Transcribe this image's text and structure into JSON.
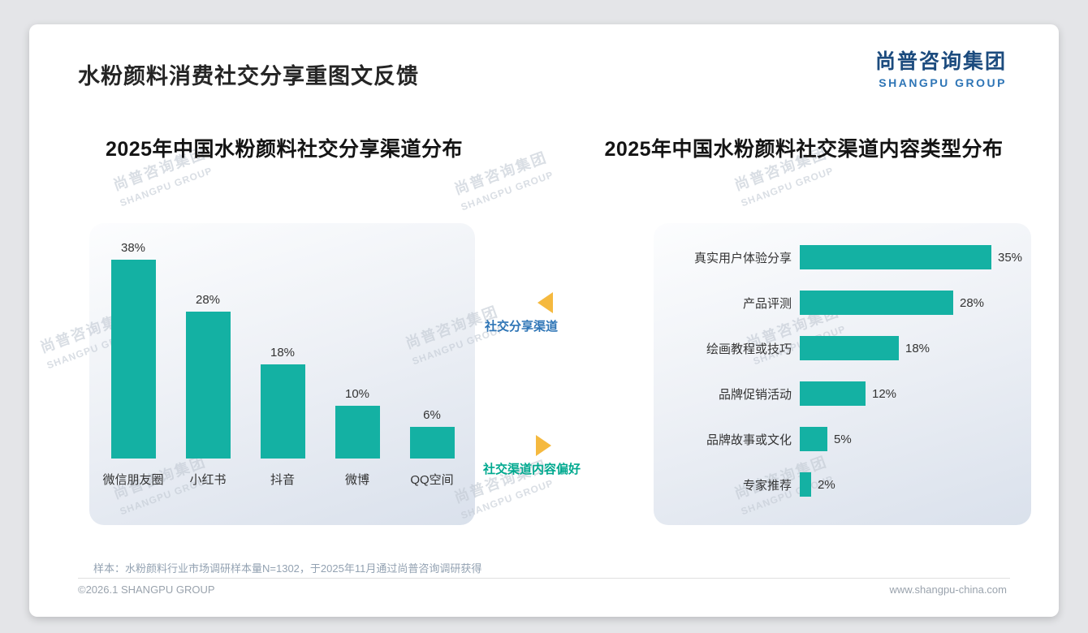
{
  "page": {
    "title": "水粉颜料消费社交分享重图文反馈",
    "logo": {
      "cn": "尚普咨询集团",
      "en": "SHANGPU GROUP"
    },
    "watermark": {
      "cn": "尚普咨询集团",
      "en": "SHANGPU GROUP"
    },
    "sample_note": "样本：水粉颜料行业市场调研样本量N=1302，于2025年11月通过尚普咨询调研获得",
    "footer": {
      "copyright": "©2026.1 SHANGPU GROUP",
      "website": "www.shangpu-china.com"
    }
  },
  "annotations": {
    "left_chart_label": "社交分享渠道",
    "right_chart_label": "社交渠道内容偏好"
  },
  "colors": {
    "bar_teal": "#14B1A3",
    "annotation_blue": "#2E75B6",
    "annotation_teal": "#00A98F",
    "arrow_gold": "#F5B93F",
    "logo_navy": "#1C4B7E",
    "logo_blue": "#2E75B6"
  },
  "chart_data": [
    {
      "type": "bar",
      "orientation": "vertical",
      "title": "2025年中国水粉颜料社交分享渠道分布",
      "categories": [
        "微信朋友圈",
        "小红书",
        "抖音",
        "微博",
        "QQ空间"
      ],
      "values": [
        38,
        28,
        18,
        10,
        6
      ],
      "value_labels": [
        "38%",
        "28%",
        "18%",
        "10%",
        "6%"
      ],
      "unit": "%",
      "ylim": [
        0,
        40
      ],
      "grid": false,
      "legend": false
    },
    {
      "type": "bar",
      "orientation": "horizontal",
      "title": "2025年中国水粉颜料社交渠道内容类型分布",
      "categories": [
        "真实用户体验分享",
        "产品评测",
        "绘画教程或技巧",
        "品牌促销活动",
        "品牌故事或文化",
        "专家推荐"
      ],
      "values": [
        35,
        28,
        18,
        12,
        5,
        2
      ],
      "value_labels": [
        "35%",
        "28%",
        "18%",
        "12%",
        "5%",
        "2%"
      ],
      "unit": "%",
      "xlim": [
        0,
        40
      ],
      "grid": false,
      "legend": false
    }
  ]
}
